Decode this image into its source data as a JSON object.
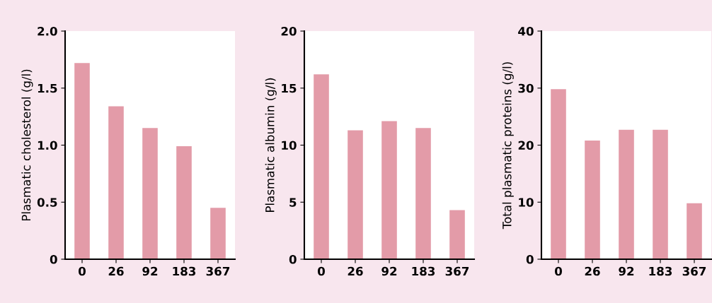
{
  "chart_data": [
    {
      "type": "bar",
      "ylabel": "Plasmatic cholesterol (g/l)",
      "categories": [
        "0",
        "26",
        "92",
        "183",
        "367"
      ],
      "values": [
        1.72,
        1.34,
        1.15,
        0.99,
        0.45
      ],
      "color": "#e39ba8",
      "ylim": [
        0,
        2.0
      ],
      "yticks": [
        {
          "value": 0,
          "label": "0"
        },
        {
          "value": 0.5,
          "label": "0.5"
        },
        {
          "value": 1.0,
          "label": "1.0"
        },
        {
          "value": 1.5,
          "label": "1.5"
        },
        {
          "value": 2.0,
          "label": "2.0"
        }
      ],
      "grid": false,
      "legend": false
    },
    {
      "type": "bar",
      "ylabel": "Plasmatic albumin (g/l)",
      "categories": [
        "0",
        "26",
        "92",
        "183",
        "367"
      ],
      "values": [
        16.2,
        11.3,
        12.1,
        11.5,
        4.3
      ],
      "color": "#e39ba8",
      "ylim": [
        0,
        20
      ],
      "yticks": [
        0,
        5,
        10,
        15,
        20
      ],
      "grid": false,
      "legend": false
    },
    {
      "type": "bar",
      "ylabel": "Total plasmatic proteins (g/l)",
      "categories": [
        "0",
        "26",
        "92",
        "183",
        "367"
      ],
      "values": [
        29.8,
        20.8,
        22.7,
        22.7,
        9.8
      ],
      "color": "#e39ba8",
      "ylim": [
        0,
        40
      ],
      "yticks": [
        0,
        10,
        20,
        30,
        40
      ],
      "grid": false,
      "legend": false
    }
  ]
}
